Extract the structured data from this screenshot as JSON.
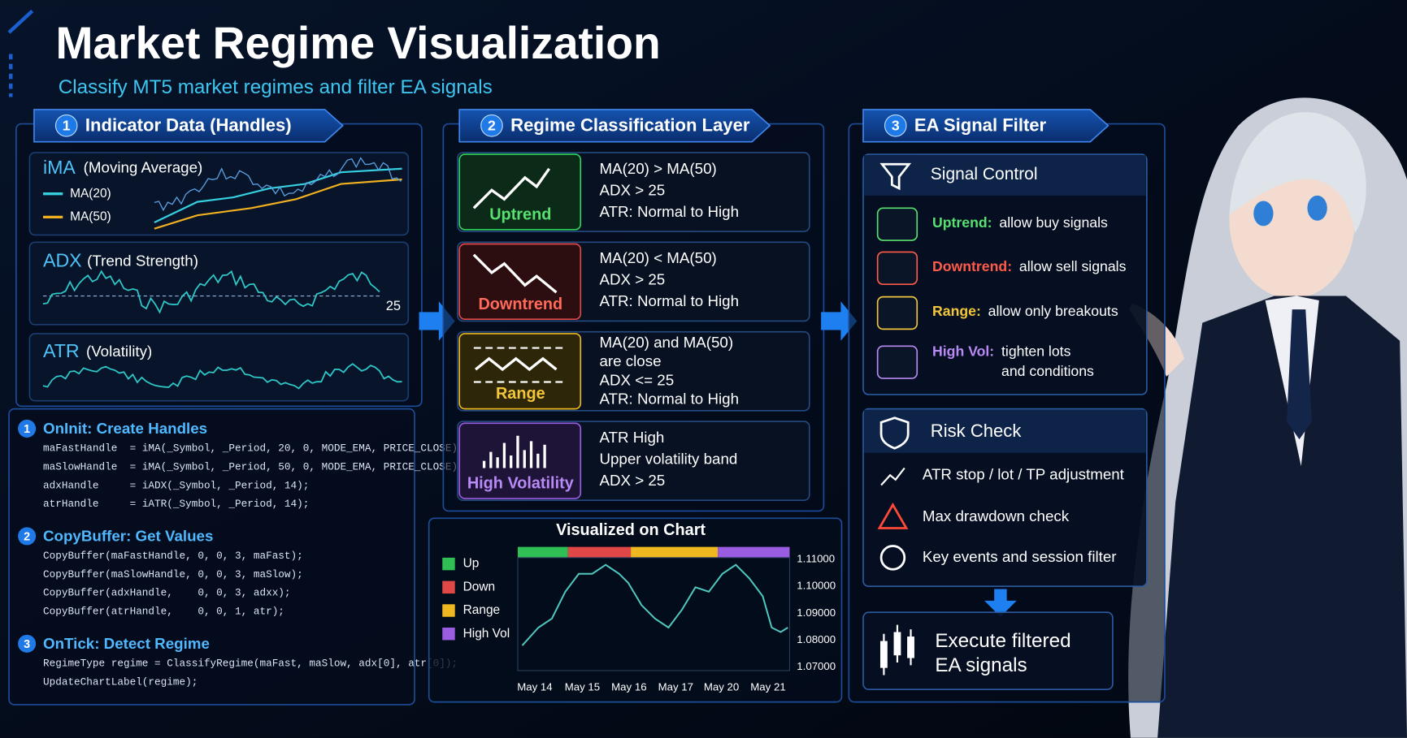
{
  "header": {
    "title": "Market Regime Visualization",
    "subtitle": "Classify MT5 market regimes and filter EA signals"
  },
  "indicator_panel": {
    "number": "1",
    "title": "Indicator Data (Handles)",
    "ima": {
      "name": "iMA",
      "desc": "(Moving Average)",
      "legend": [
        "MA(20)",
        "MA(50)"
      ]
    },
    "adx": {
      "name": "ADX",
      "desc": "(Trend Strength)",
      "level": "25"
    },
    "atr": {
      "name": "ATR",
      "desc": "(Volatility)"
    }
  },
  "code": {
    "sections": [
      {
        "number": "1",
        "title": "OnInit:  Create Handles",
        "lines": [
          "maFastHandle  = iMA(_Symbol, _Period, 20, 0, MODE_EMA, PRICE_CLOSE);",
          "maSlowHandle  = iMA(_Symbol, _Period, 50, 0, MODE_EMA, PRICE_CLOSE);",
          "adxHandle     = iADX(_Symbol, _Period, 14);",
          "atrHandle     = iATR(_Symbol, _Period, 14);"
        ]
      },
      {
        "number": "2",
        "title": "CopyBuffer: Get Values",
        "lines": [
          "CopyBuffer(maFastHandle, 0, 0, 3, maFast);",
          "CopyBuffer(maSlowHandle, 0, 0, 3, maSlow);",
          "CopyBuffer(adxHandle,    0, 0, 3, adxx);",
          "CopyBuffer(atrHandle,    0, 0, 1, atr);"
        ]
      },
      {
        "number": "3",
        "title": "OnTick: Detect Regime",
        "lines": [
          "RegimeType regime = ClassifyRegime(maFast, maSlow, adx[0], atr[0]);",
          "UpdateChartLabel(regime);"
        ]
      }
    ]
  },
  "regime_panel": {
    "number": "2",
    "title": "Regime Classification Layer",
    "cards": [
      {
        "label": "Uptrend",
        "rules": [
          "MA(20) > MA(50)",
          "ADX > 25",
          "ATR: Normal to High"
        ]
      },
      {
        "label": "Downtrend",
        "rules": [
          "MA(20) < MA(50)",
          "ADX > 25",
          "ATR: Normal to High"
        ]
      },
      {
        "label": "Range",
        "rules": [
          "MA(20) and MA(50)",
          "are close",
          "ADX <= 25",
          "ATR: Normal to High"
        ]
      },
      {
        "label": "High Volatility",
        "rules": [
          "ATR High",
          "Upper volatility band",
          "ADX > 25"
        ]
      }
    ]
  },
  "chart": {
    "title": "Visualized on Chart",
    "legend": [
      "Up",
      "Down",
      "Range",
      "High Vol"
    ],
    "y_labels": [
      "1.11000",
      "1.10000",
      "1.09000",
      "1.08000",
      "1.07000"
    ],
    "x_labels": [
      "May 14",
      "May 15",
      "May 16",
      "May 17",
      "May 20",
      "May 21"
    ]
  },
  "filter_panel": {
    "number": "3",
    "title": "EA Signal Filter",
    "signal_control": {
      "title": "Signal Control",
      "items": [
        {
          "label": "Uptrend:",
          "text": [
            "allow buy signals"
          ]
        },
        {
          "label": "Downtrend:",
          "text": [
            "allow sell signals"
          ]
        },
        {
          "label": "Range:",
          "text": [
            "allow only breakouts"
          ]
        },
        {
          "label": "High Vol:",
          "text": [
            "tighten lots",
            "and conditions"
          ]
        }
      ]
    },
    "risk_check": {
      "title": "Risk Check",
      "items": [
        "ATR stop / lot / TP adjustment",
        "Max drawdown check",
        "Key events and session filter"
      ]
    },
    "execute": [
      "Execute filtered",
      "EA signals"
    ]
  }
}
